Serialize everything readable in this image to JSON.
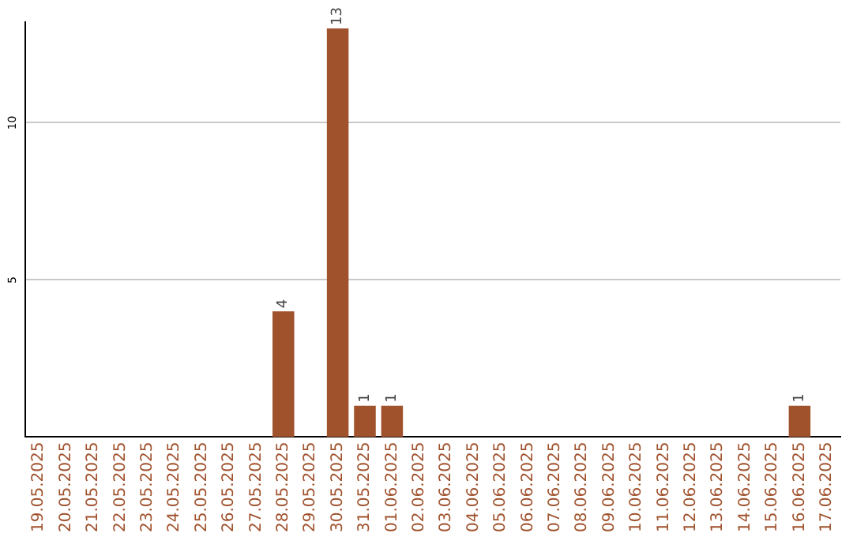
{
  "chart_data": {
    "type": "bar",
    "categories": [
      "19.05.2025",
      "20.05.2025",
      "21.05.2025",
      "22.05.2025",
      "23.05.2025",
      "24.05.2025",
      "25.05.2025",
      "26.05.2025",
      "27.05.2025",
      "28.05.2025",
      "29.05.2025",
      "30.05.2025",
      "31.05.2025",
      "01.06.2025",
      "02.06.2025",
      "03.06.2025",
      "04.06.2025",
      "05.06.2025",
      "06.06.2025",
      "07.06.2025",
      "08.06.2025",
      "09.06.2025",
      "10.06.2025",
      "11.06.2025",
      "12.06.2025",
      "13.06.2025",
      "14.06.2025",
      "15.06.2025",
      "16.06.2025",
      "17.06.2025"
    ],
    "values": [
      0,
      0,
      0,
      0,
      0,
      0,
      0,
      0,
      0,
      4,
      0,
      13,
      1,
      1,
      0,
      0,
      0,
      0,
      0,
      0,
      0,
      0,
      0,
      0,
      0,
      0,
      0,
      0,
      1,
      0
    ],
    "value_labels": [
      null,
      null,
      null,
      null,
      null,
      null,
      null,
      null,
      null,
      "4",
      null,
      "13",
      "1",
      "1",
      null,
      null,
      null,
      null,
      null,
      null,
      null,
      null,
      null,
      null,
      null,
      null,
      null,
      null,
      "1",
      null
    ],
    "color": "#a0522d",
    "ylim": [
      0,
      13.2
    ],
    "yticks": [
      5,
      10
    ],
    "grid": "y",
    "legend": false
  }
}
